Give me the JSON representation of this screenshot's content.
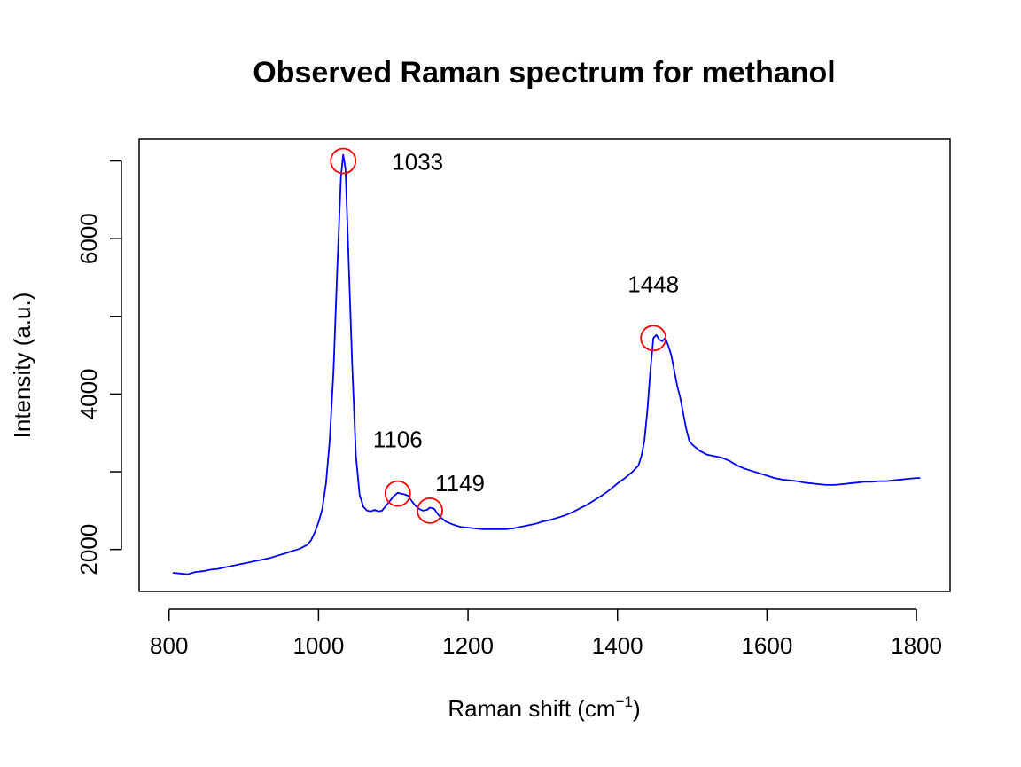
{
  "chart_data": {
    "type": "line",
    "title": "Observed Raman spectrum for methanol",
    "xlabel_main": "Raman shift (cm",
    "xlabel_sup": "−1",
    "xlabel_close": ")",
    "ylabel": "Intensity (a.u.)",
    "xlim": [
      760,
      1845
    ],
    "ylim": [
      1460,
      7280
    ],
    "xticks": [
      800,
      1000,
      1200,
      1400,
      1600,
      1800
    ],
    "yticks": [
      2000,
      4000,
      6000
    ],
    "yticks_minor": [
      3000,
      5000,
      7000
    ],
    "grid": false,
    "legend": "none",
    "colors": {
      "line": "#0000ff",
      "marker": "#ff0000",
      "text": "#000000"
    },
    "series": [
      {
        "values": [
          [
            805,
            1700
          ],
          [
            815,
            1690
          ],
          [
            825,
            1680
          ],
          [
            835,
            1710
          ],
          [
            845,
            1720
          ],
          [
            855,
            1740
          ],
          [
            865,
            1750
          ],
          [
            875,
            1770
          ],
          [
            885,
            1790
          ],
          [
            895,
            1810
          ],
          [
            905,
            1830
          ],
          [
            915,
            1850
          ],
          [
            925,
            1870
          ],
          [
            935,
            1890
          ],
          [
            945,
            1920
          ],
          [
            955,
            1950
          ],
          [
            965,
            1980
          ],
          [
            975,
            2010
          ],
          [
            985,
            2060
          ],
          [
            990,
            2120
          ],
          [
            995,
            2220
          ],
          [
            1000,
            2350
          ],
          [
            1005,
            2520
          ],
          [
            1010,
            2850
          ],
          [
            1015,
            3400
          ],
          [
            1020,
            4300
          ],
          [
            1025,
            5600
          ],
          [
            1030,
            6800
          ],
          [
            1033,
            7080
          ],
          [
            1036,
            6900
          ],
          [
            1040,
            5800
          ],
          [
            1045,
            4400
          ],
          [
            1050,
            3200
          ],
          [
            1055,
            2700
          ],
          [
            1060,
            2550
          ],
          [
            1065,
            2500
          ],
          [
            1070,
            2490
          ],
          [
            1075,
            2510
          ],
          [
            1080,
            2490
          ],
          [
            1085,
            2500
          ],
          [
            1090,
            2560
          ],
          [
            1095,
            2620
          ],
          [
            1100,
            2680
          ],
          [
            1106,
            2730
          ],
          [
            1110,
            2720
          ],
          [
            1115,
            2710
          ],
          [
            1120,
            2690
          ],
          [
            1125,
            2620
          ],
          [
            1130,
            2560
          ],
          [
            1135,
            2520
          ],
          [
            1140,
            2500
          ],
          [
            1145,
            2510
          ],
          [
            1149,
            2540
          ],
          [
            1155,
            2520
          ],
          [
            1160,
            2450
          ],
          [
            1165,
            2400
          ],
          [
            1170,
            2360
          ],
          [
            1180,
            2320
          ],
          [
            1190,
            2290
          ],
          [
            1200,
            2280
          ],
          [
            1210,
            2270
          ],
          [
            1220,
            2260
          ],
          [
            1230,
            2260
          ],
          [
            1240,
            2260
          ],
          [
            1250,
            2260
          ],
          [
            1260,
            2270
          ],
          [
            1270,
            2290
          ],
          [
            1280,
            2310
          ],
          [
            1290,
            2330
          ],
          [
            1300,
            2360
          ],
          [
            1310,
            2380
          ],
          [
            1320,
            2410
          ],
          [
            1330,
            2440
          ],
          [
            1340,
            2480
          ],
          [
            1350,
            2530
          ],
          [
            1360,
            2580
          ],
          [
            1370,
            2640
          ],
          [
            1380,
            2700
          ],
          [
            1390,
            2770
          ],
          [
            1400,
            2850
          ],
          [
            1410,
            2920
          ],
          [
            1420,
            3000
          ],
          [
            1428,
            3080
          ],
          [
            1432,
            3200
          ],
          [
            1436,
            3400
          ],
          [
            1440,
            3800
          ],
          [
            1444,
            4300
          ],
          [
            1448,
            4720
          ],
          [
            1452,
            4760
          ],
          [
            1456,
            4700
          ],
          [
            1460,
            4680
          ],
          [
            1464,
            4720
          ],
          [
            1468,
            4620
          ],
          [
            1472,
            4500
          ],
          [
            1476,
            4300
          ],
          [
            1480,
            4100
          ],
          [
            1484,
            3950
          ],
          [
            1488,
            3750
          ],
          [
            1492,
            3550
          ],
          [
            1496,
            3400
          ],
          [
            1500,
            3350
          ],
          [
            1510,
            3270
          ],
          [
            1520,
            3220
          ],
          [
            1530,
            3200
          ],
          [
            1540,
            3180
          ],
          [
            1550,
            3140
          ],
          [
            1560,
            3080
          ],
          [
            1570,
            3040
          ],
          [
            1580,
            3010
          ],
          [
            1590,
            2980
          ],
          [
            1600,
            2950
          ],
          [
            1610,
            2920
          ],
          [
            1620,
            2900
          ],
          [
            1630,
            2890
          ],
          [
            1640,
            2880
          ],
          [
            1650,
            2860
          ],
          [
            1660,
            2850
          ],
          [
            1670,
            2840
          ],
          [
            1680,
            2830
          ],
          [
            1690,
            2830
          ],
          [
            1700,
            2840
          ],
          [
            1710,
            2850
          ],
          [
            1720,
            2860
          ],
          [
            1730,
            2870
          ],
          [
            1740,
            2870
          ],
          [
            1750,
            2880
          ],
          [
            1760,
            2880
          ],
          [
            1770,
            2890
          ],
          [
            1780,
            2900
          ],
          [
            1790,
            2910
          ],
          [
            1800,
            2920
          ],
          [
            1805,
            2920
          ]
        ]
      }
    ],
    "peaks": [
      {
        "x": 1033,
        "y": 7000,
        "label": "1033",
        "label_pos": "right"
      },
      {
        "x": 1106,
        "y": 2720,
        "label": "1106",
        "label_pos": "above"
      },
      {
        "x": 1149,
        "y": 2500,
        "label": "1149",
        "label_pos": "above-right"
      },
      {
        "x": 1448,
        "y": 4720,
        "label": "1448",
        "label_pos": "above"
      }
    ]
  }
}
